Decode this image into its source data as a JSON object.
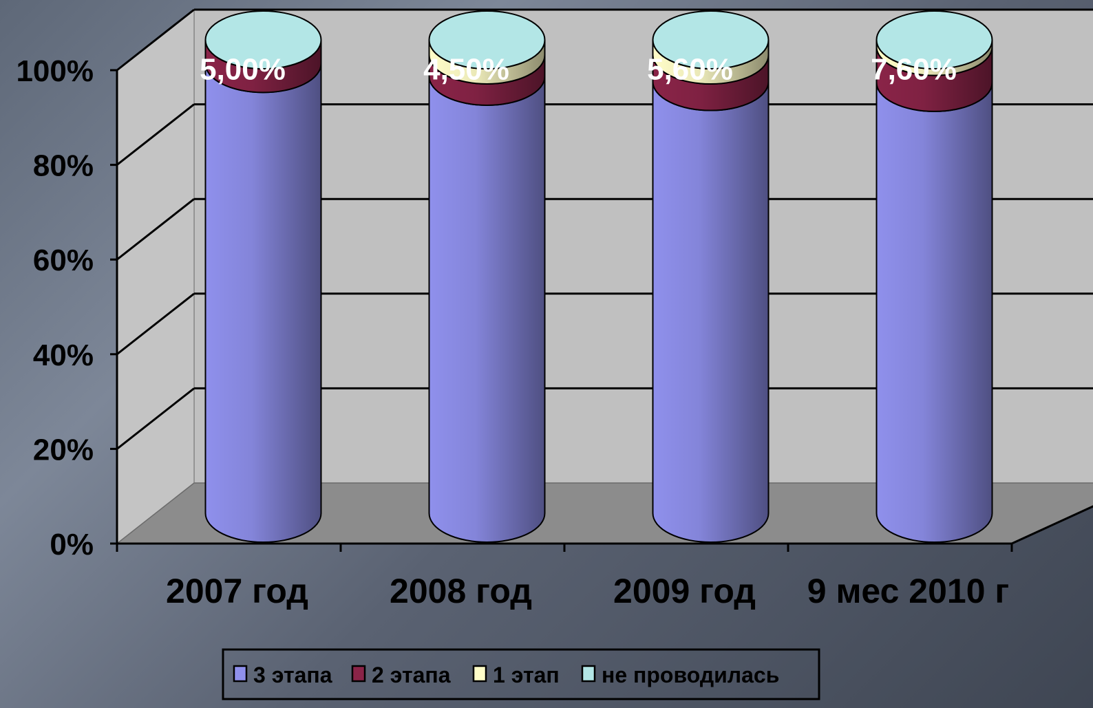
{
  "chart_data": {
    "type": "bar",
    "variant": "3d-stacked-cylinder-percent",
    "title": "",
    "xlabel": "",
    "ylabel": "",
    "categories": [
      "2007 год",
      "2008 год",
      "2009 год",
      "9 мес 2010 г"
    ],
    "y_ticks": [
      "0%",
      "20%",
      "40%",
      "60%",
      "80%",
      "100%"
    ],
    "ylim": [
      0,
      100
    ],
    "series": [
      {
        "name": "3 этапа",
        "color": "#8f90ec",
        "values": [
          95.0,
          92.3,
          91.2,
          91.0
        ]
      },
      {
        "name": "2 этапа",
        "color": "#8a2448",
        "values": [
          5.0,
          4.5,
          5.6,
          7.6
        ]
      },
      {
        "name": "1 этап",
        "color": "#fffdc8",
        "values": [
          0.0,
          3.2,
          3.2,
          1.4
        ]
      },
      {
        "name": "не проводилась",
        "color": "#b3e6e6",
        "values": [
          0.0,
          0.0,
          0.0,
          0.0
        ]
      }
    ],
    "data_labels": [
      "5,00%",
      "4,50%",
      "5,60%",
      "7,60%"
    ],
    "grid": true,
    "legend_position": "bottom"
  }
}
